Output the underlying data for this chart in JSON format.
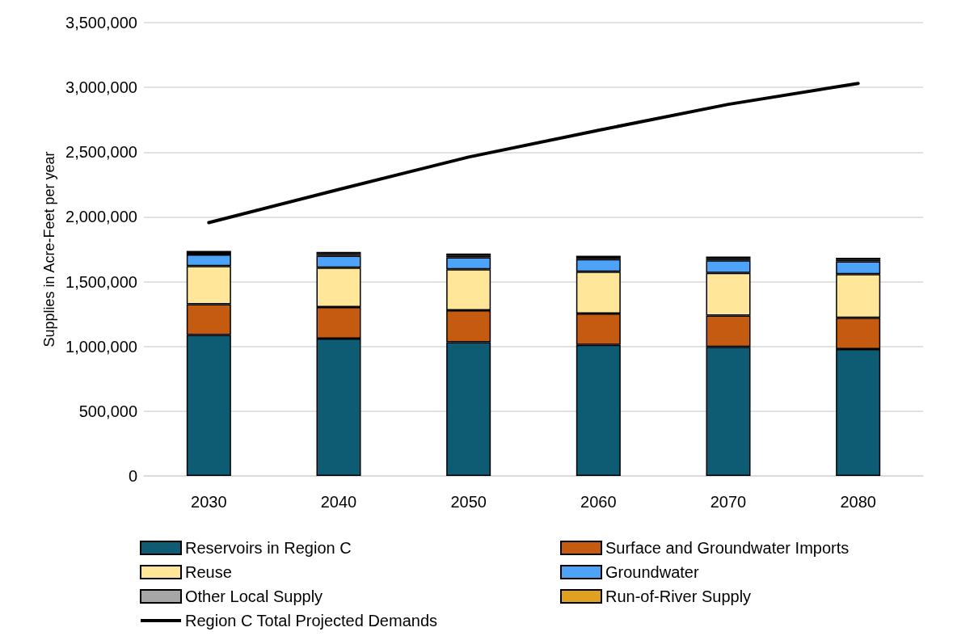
{
  "chart_data": {
    "type": "bar",
    "stacked": true,
    "ylabel": "Supplies in Acre-Feet per year",
    "categories": [
      "2030",
      "2040",
      "2050",
      "2060",
      "2070",
      "2080"
    ],
    "series": [
      {
        "name": "Reservoirs in Region C",
        "color": "#0e5c73",
        "values": [
          1088000,
          1060000,
          1033000,
          1012000,
          996000,
          979000
        ]
      },
      {
        "name": "Surface and Groundwater Imports",
        "color": "#c55a11",
        "values": [
          238000,
          244000,
          246000,
          242000,
          243000,
          242000
        ]
      },
      {
        "name": "Reuse",
        "color": "#ffe699",
        "values": [
          294000,
          304000,
          317000,
          323000,
          328000,
          337000
        ]
      },
      {
        "name": "Groundwater",
        "color": "#4da3f7",
        "values": [
          90000,
          92000,
          91000,
          96000,
          97000,
          98000
        ]
      },
      {
        "name": "Other Local Supply",
        "color": "#a6a6a6",
        "values": [
          12000,
          12000,
          12000,
          12000,
          12000,
          12000
        ]
      },
      {
        "name": "Run-of-River Supply",
        "color": "#e0a020",
        "values": [
          15000,
          17000,
          19000,
          15000,
          18000,
          17000
        ]
      },
      {
        "name": "Region C Total Projected Demands",
        "type": "line",
        "color": "#000000",
        "values": [
          1956000,
          2212000,
          2462000,
          2669000,
          2869000,
          3031000
        ]
      }
    ],
    "ylim": [
      0,
      3500000
    ],
    "yticks": [
      0,
      {
        "value": 500000,
        "label": "500,000"
      },
      {
        "value": 1000000,
        "label": "1,000,000"
      },
      {
        "value": 1500000,
        "label": "1,500,000"
      },
      {
        "value": 2000000,
        "label": "2,000,000"
      },
      {
        "value": 2500000,
        "label": "2,500,000"
      },
      {
        "value": 3000000,
        "label": "3,000,000"
      },
      {
        "value": 3500000,
        "label": "3,500,000"
      }
    ],
    "grid": "y",
    "legend": "bottom",
    "marker": "none",
    "line_style": "solid"
  }
}
